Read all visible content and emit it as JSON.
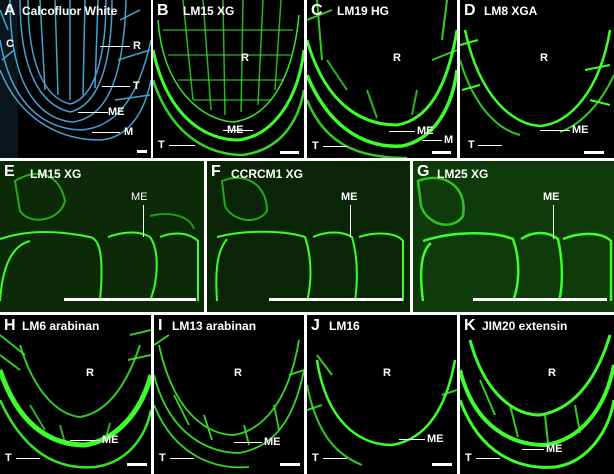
{
  "panels": {
    "A": {
      "letter": "A",
      "title": "Calcofluor White",
      "labels": {
        "C": "C",
        "R": "R",
        "T": "T",
        "ME": "ME",
        "M": "M"
      }
    },
    "B": {
      "letter": "B",
      "title": "LM15 XG",
      "labels": {
        "R": "R",
        "T": "T",
        "ME": "ME"
      }
    },
    "C": {
      "letter": "C",
      "title": "LM19 HG",
      "labels": {
        "R": "R",
        "T": "T",
        "ME": "ME",
        "M": "M"
      }
    },
    "D": {
      "letter": "D",
      "title": "LM8 XGA",
      "labels": {
        "R": "R",
        "T": "T",
        "ME": "ME"
      }
    },
    "E": {
      "letter": "E",
      "title": "LM15 XG",
      "labels": {
        "ME": "ME"
      }
    },
    "F": {
      "letter": "F",
      "title": "CCRCM1 XG",
      "labels": {
        "ME": "ME"
      }
    },
    "G": {
      "letter": "G",
      "title": "LM25 XG",
      "labels": {
        "ME": "ME"
      }
    },
    "H": {
      "letter": "H",
      "title": "LM6 arabinan",
      "labels": {
        "R": "R",
        "T": "T",
        "ME": "ME"
      }
    },
    "I": {
      "letter": "I",
      "title": "LM13 arabinan",
      "labels": {
        "R": "R",
        "T": "T",
        "ME": "ME"
      }
    },
    "J": {
      "letter": "J",
      "title": "LM16",
      "labels": {
        "R": "R",
        "T": "T",
        "ME": "ME"
      }
    },
    "K": {
      "letter": "K",
      "title": "JIM20 extensin",
      "labels": {
        "R": "R",
        "T": "T",
        "ME": "ME"
      }
    }
  },
  "colors": {
    "stain_blue": "#4fb3e8",
    "stain_green": "#3cff2a",
    "background": "#000000"
  }
}
